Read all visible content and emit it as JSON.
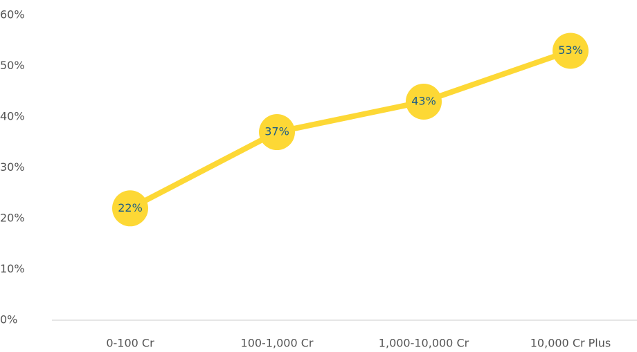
{
  "chart_data": {
    "type": "line",
    "categories": [
      "0-100 Cr",
      "100-1,000 Cr",
      "1,000-10,000 Cr",
      "10,000 Cr Plus"
    ],
    "values": [
      22,
      37,
      43,
      53
    ],
    "value_labels": [
      "22%",
      "37%",
      "43%",
      "53%"
    ],
    "color": "#fdd835",
    "label_color": "#1d5c86",
    "ylim": [
      0,
      60
    ],
    "yticks": [
      {
        "value": 0,
        "label": "0%"
      },
      {
        "value": 10,
        "label": "10%"
      },
      {
        "value": 20,
        "label": "20%"
      },
      {
        "value": 30,
        "label": "30%"
      },
      {
        "value": 40,
        "label": "40%"
      },
      {
        "value": 50,
        "label": "50%"
      },
      {
        "value": 60,
        "label": "60%"
      }
    ],
    "grid": false
  }
}
